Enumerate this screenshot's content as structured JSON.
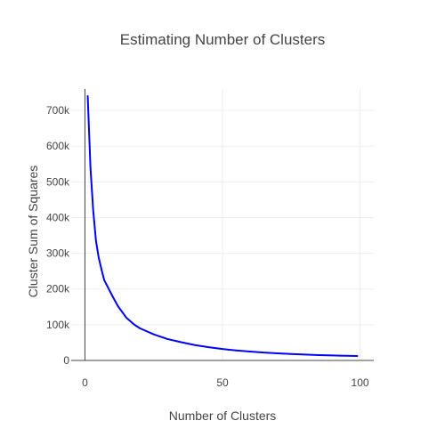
{
  "chart_data": {
    "type": "line",
    "title": "Estimating Number of Clusters",
    "xlabel": "Number of Clusters",
    "ylabel": "Cluster Sum of Squares",
    "xlim": [
      -5,
      105
    ],
    "ylim": [
      0,
      760000
    ],
    "grid": true,
    "line_color": "#0000ff",
    "grid_color": "#eeeeee",
    "axis_color": "#444444",
    "x_ticks": [
      {
        "value": 0,
        "label": "0"
      },
      {
        "value": 50,
        "label": "50"
      },
      {
        "value": 100,
        "label": "100"
      }
    ],
    "y_ticks": [
      {
        "value": 0,
        "label": "0"
      },
      {
        "value": 100000,
        "label": "100k"
      },
      {
        "value": 200000,
        "label": "200k"
      },
      {
        "value": 300000,
        "label": "300k"
      },
      {
        "value": 400000,
        "label": "400k"
      },
      {
        "value": 500000,
        "label": "500k"
      },
      {
        "value": 600000,
        "label": "600k"
      },
      {
        "value": 700000,
        "label": "700k"
      }
    ],
    "series": [
      {
        "x": [
          1,
          2,
          3,
          4,
          5,
          6,
          7,
          8,
          10,
          12,
          15,
          18,
          20,
          25,
          30,
          35,
          40,
          45,
          50,
          55,
          60,
          65,
          70,
          75,
          80,
          85,
          90,
          95,
          99
        ],
        "values": [
          740000,
          540000,
          420000,
          335000,
          288000,
          255000,
          225000,
          210000,
          180000,
          152000,
          120000,
          100000,
          90000,
          73000,
          60000,
          51000,
          43000,
          37000,
          32000,
          28000,
          25000,
          22000,
          20000,
          18000,
          16500,
          15000,
          14000,
          13000,
          12500
        ]
      }
    ]
  }
}
